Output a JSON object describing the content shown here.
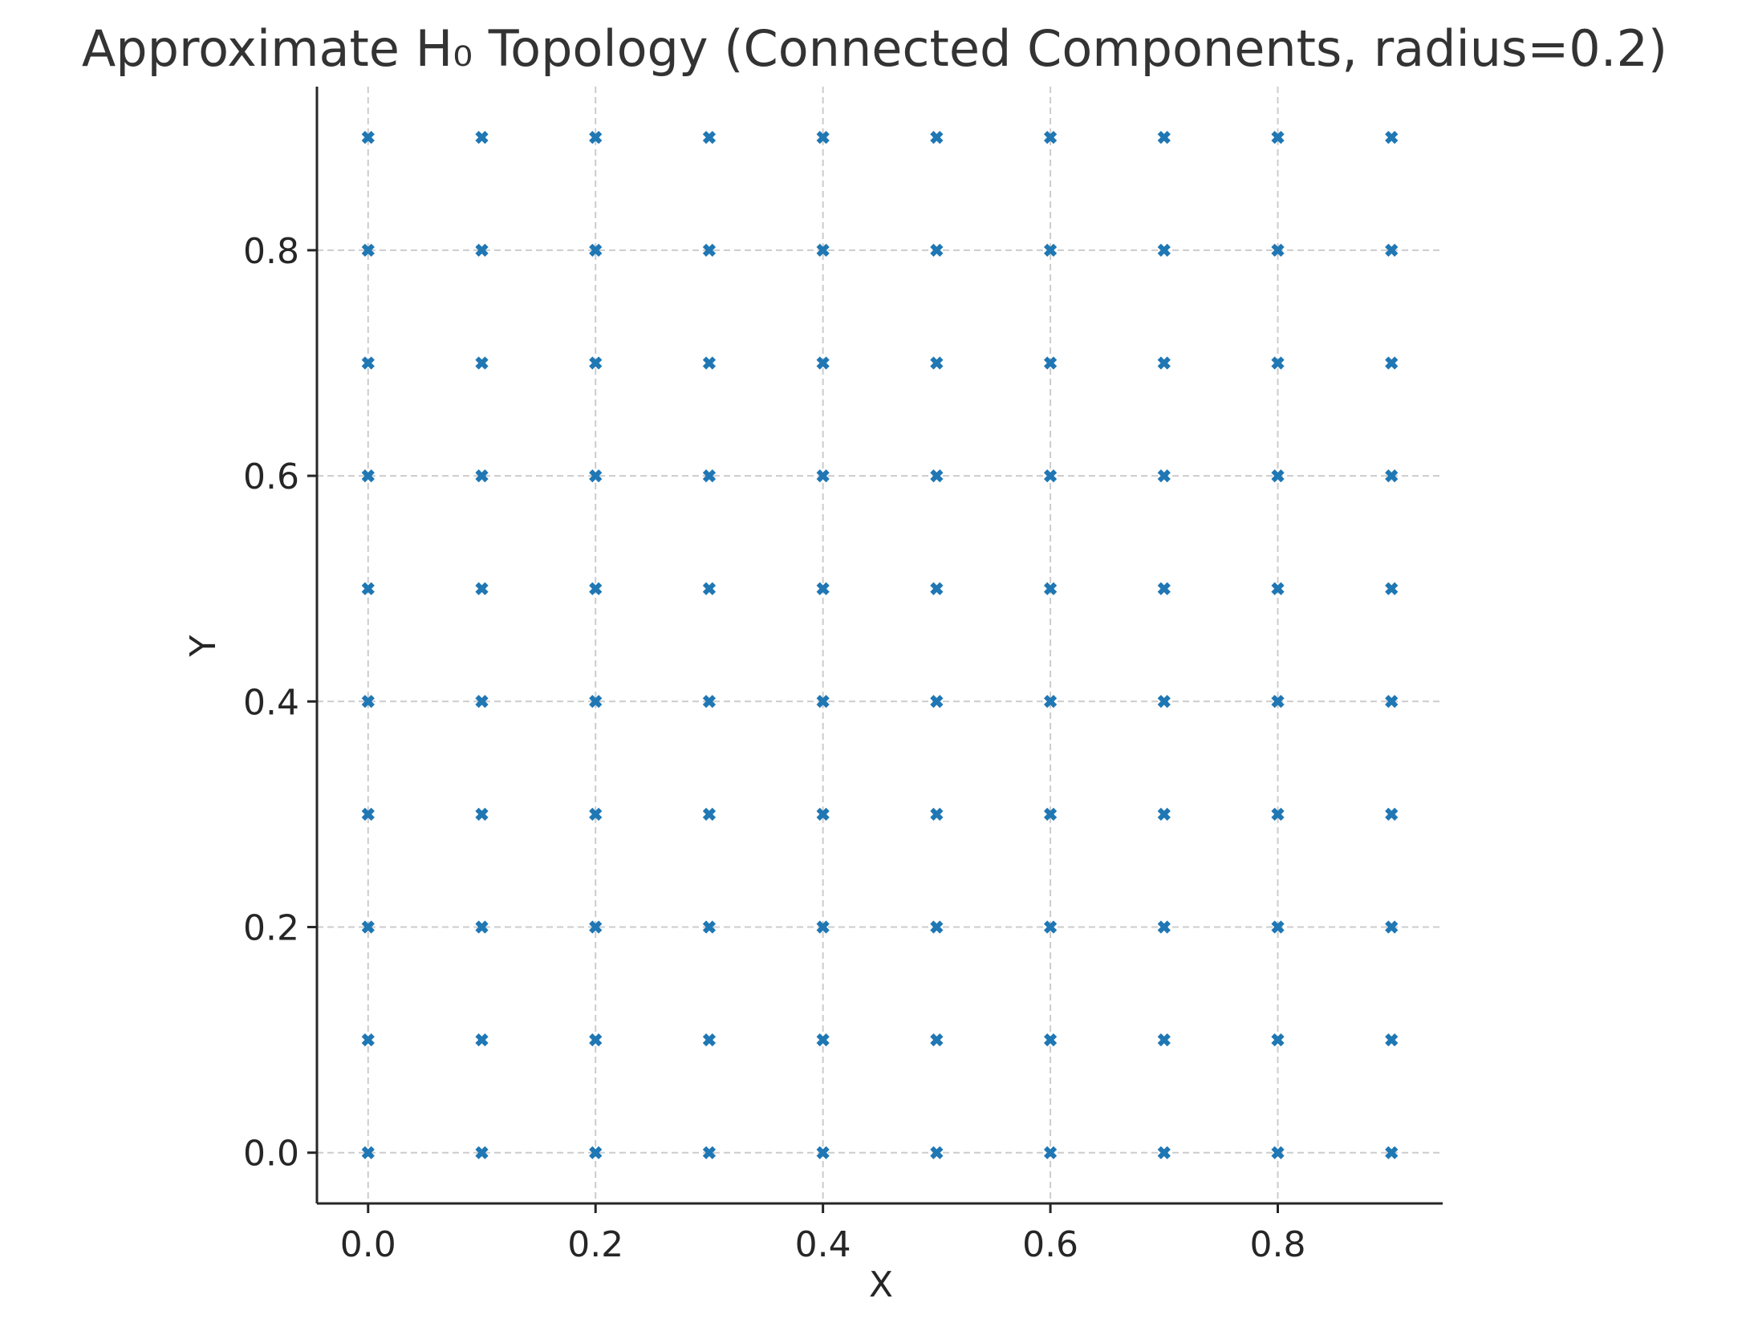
{
  "chart_data": {
    "type": "scatter",
    "title": "Approximate H₀ Topology (Connected Components, radius=0.2)",
    "xlabel": "X",
    "ylabel": "Y",
    "xlim": [
      -0.045,
      0.945
    ],
    "ylim": [
      -0.045,
      0.945
    ],
    "xticks": [
      0.0,
      0.2,
      0.4,
      0.6,
      0.8
    ],
    "yticks": [
      0.0,
      0.2,
      0.4,
      0.6,
      0.8
    ],
    "xtick_labels": [
      "0.0",
      "0.2",
      "0.4",
      "0.6",
      "0.8"
    ],
    "ytick_labels": [
      "0.0",
      "0.2",
      "0.4",
      "0.6",
      "0.8"
    ],
    "grid": true,
    "marker": "x",
    "marker_color": "#1f77b4",
    "x_values": [
      0.0,
      0.1,
      0.2,
      0.3,
      0.4,
      0.5,
      0.6,
      0.7,
      0.8,
      0.9
    ],
    "y_values": [
      0.0,
      0.1,
      0.2,
      0.3,
      0.4,
      0.5,
      0.6,
      0.7,
      0.8,
      0.9
    ],
    "points_layout": "full grid of every x value paired with every y value (100 points)"
  }
}
